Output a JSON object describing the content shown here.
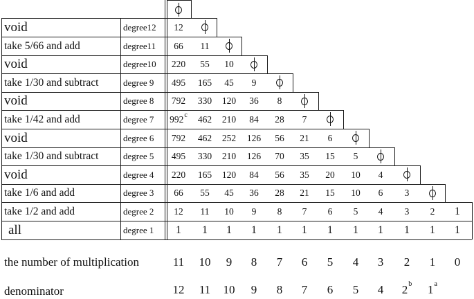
{
  "rows": [
    {
      "label": "void",
      "degree": "degree12",
      "values": [
        "12"
      ]
    },
    {
      "label": "take 5/66 and add",
      "degree": "degree11",
      "values": [
        "66",
        "11"
      ]
    },
    {
      "label": "void",
      "degree": "degree10",
      "values": [
        "220",
        "55",
        "10"
      ]
    },
    {
      "label": "take 1/30 and subtract",
      "degree": "degree 9",
      "values": [
        "495",
        "165",
        "45",
        "9"
      ]
    },
    {
      "label": "void",
      "degree": "degree 8",
      "values": [
        "792",
        "330",
        "120",
        "36",
        "8"
      ]
    },
    {
      "label": "take 1/42 and add",
      "degree": "degree 7",
      "values": [
        "992",
        "462",
        "210",
        "84",
        "28",
        "7"
      ]
    },
    {
      "label": "void",
      "degree": "degree 6",
      "values": [
        "792",
        "462",
        "252",
        "126",
        "56",
        "21",
        "6"
      ]
    },
    {
      "label": "take 1/30 and subtract",
      "degree": "degree 5",
      "values": [
        "495",
        "330",
        "210",
        "126",
        "70",
        "35",
        "15",
        "5"
      ]
    },
    {
      "label": "void",
      "degree": "degree 4",
      "values": [
        "220",
        "165",
        "120",
        "84",
        "56",
        "35",
        "20",
        "10",
        "4"
      ]
    },
    {
      "label": "take 1/6 and add",
      "degree": "degree 3",
      "values": [
        "66",
        "55",
        "45",
        "36",
        "28",
        "21",
        "15",
        "10",
        "6",
        "3"
      ]
    },
    {
      "label": "take 1/2 and add",
      "degree": "degree 2",
      "values": [
        "12",
        "11",
        "10",
        "9",
        "8",
        "7",
        "6",
        "5",
        "4",
        "3",
        "2",
        "1"
      ]
    },
    {
      "label": "all",
      "degree": "degree 1",
      "values": [
        "1",
        "1",
        "1",
        "1",
        "1",
        "1",
        "1",
        "1",
        "1",
        "1",
        "1",
        "1"
      ]
    }
  ],
  "note_992": "c",
  "multiplication": {
    "label": "the number of multiplication",
    "values": [
      "11",
      "10",
      "9",
      "8",
      "7",
      "6",
      "5",
      "4",
      "3",
      "2",
      "1",
      "0"
    ]
  },
  "denominator": {
    "label": "denominator",
    "values": [
      "12",
      "11",
      "10",
      "9",
      "8",
      "7",
      "6",
      "5",
      "4",
      "2",
      "1"
    ],
    "sup_b": "b",
    "sup_a": "a"
  },
  "icon": "phi-symbol-icon"
}
